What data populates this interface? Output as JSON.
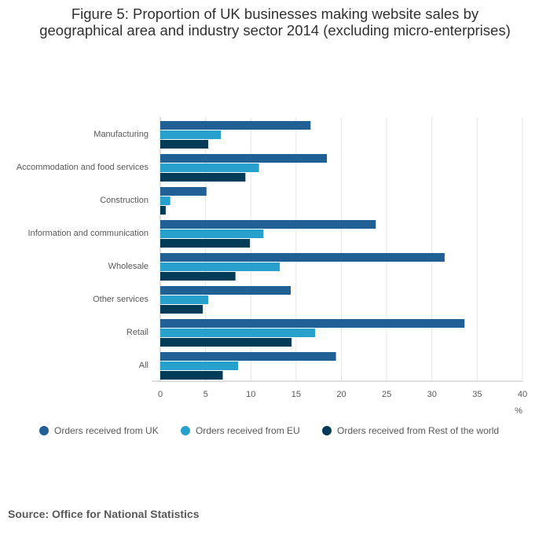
{
  "title_lines": [
    "Figure 5: Proportion of UK businesses making website sales by",
    "geographical area and industry sector 2014 (excluding micro-enterprises)"
  ],
  "source": "Source: Office for National Statistics",
  "colors": {
    "uk": "#206095",
    "eu": "#27a0cc",
    "world": "#003c57",
    "grid": "#e6e6e6",
    "axis": "#bebebe",
    "text": "#58595b"
  },
  "chart_data": {
    "type": "bar",
    "orientation": "horizontal",
    "title": "Figure 5: Proportion of UK businesses making website sales by geographical area and industry sector 2014 (excluding micro-enterprises)",
    "categories": [
      "Manufacturing",
      "Accommodation and food services",
      "Construction",
      "Information and communication",
      "Wholesale",
      "Other services",
      "Retail",
      "All"
    ],
    "series": [
      {
        "name": "Orders received from UK",
        "color": "#206095",
        "values": [
          16.6,
          18.4,
          5.1,
          23.8,
          31.4,
          14.4,
          33.6,
          19.4
        ]
      },
      {
        "name": "Orders received from EU",
        "color": "#27a0cc",
        "values": [
          6.7,
          10.9,
          1.1,
          11.4,
          13.2,
          5.3,
          17.1,
          8.6
        ]
      },
      {
        "name": "Orders received from Rest of the world",
        "color": "#003c57",
        "values": [
          5.3,
          9.4,
          0.6,
          9.9,
          8.3,
          4.7,
          14.5,
          6.9
        ]
      }
    ],
    "xlabel": "%",
    "xlim": [
      0,
      40
    ],
    "xticks": [
      "0",
      "5",
      "10",
      "15",
      "20",
      "25",
      "30",
      "35",
      "40"
    ],
    "grid": true,
    "legend_position": "bottom"
  }
}
